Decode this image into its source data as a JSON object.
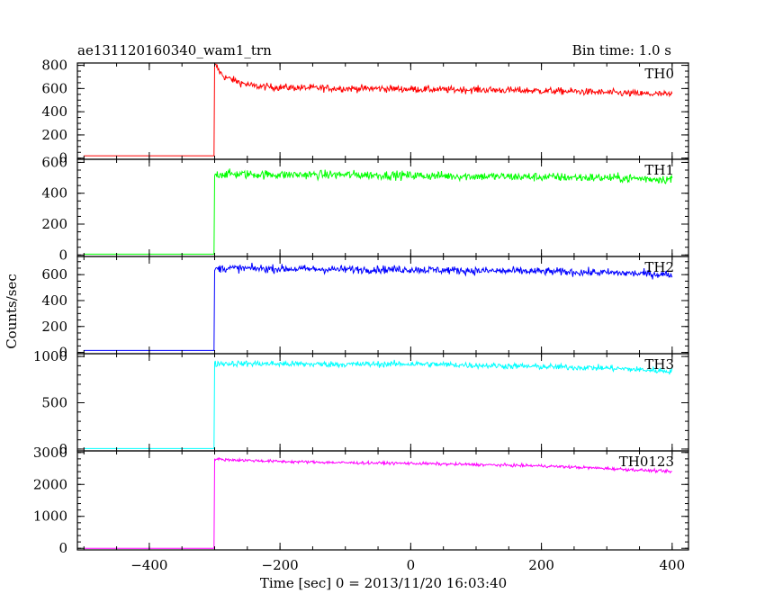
{
  "header": {
    "title": "ae131120160340_wam1_trn",
    "bin_time": "Bin time: 1.0 s"
  },
  "chart_data": {
    "type": "line",
    "xlabel": "Time [sec] 0 = 2013/11/20 16:03:40",
    "ylabel": "Counts/sec",
    "xlim": [
      -510,
      425
    ],
    "x_ticks": [
      -400,
      -200,
      0,
      200,
      400
    ],
    "x_tick_labels": [
      "−400",
      "−200",
      "0",
      "200",
      "400"
    ],
    "trigger_time": -300,
    "x_start": -500,
    "x_end": 400,
    "panels": [
      {
        "name": "TH0",
        "color": "#ff0000",
        "ylim": [
          -10,
          820
        ],
        "y_ticks": [
          0,
          200,
          400,
          600,
          800
        ],
        "y_tick_labels": [
          "0",
          "200",
          "400",
          "600",
          "800"
        ],
        "series": [
          {
            "x": [
              -500,
              -301,
              -300,
              -297,
              -292,
              -285,
              -275,
              -260,
              -240,
              -200,
              -150,
              -100,
              -50,
              0,
              50,
              100,
              150,
              200,
              250,
              300,
              350,
              390,
              400
            ],
            "y": [
              20,
              20,
              800,
              790,
              740,
              700,
              680,
              650,
              620,
              610,
              605,
              600,
              600,
              595,
              590,
              590,
              585,
              580,
              575,
              565,
              555,
              550,
              545
            ],
            "noise": 30
          }
        ]
      },
      {
        "name": "TH1",
        "color": "#00ff00",
        "ylim": [
          -10,
          620
        ],
        "y_ticks": [
          0,
          200,
          400,
          600
        ],
        "y_tick_labels": [
          "0",
          "200",
          "400",
          "600"
        ],
        "series": [
          {
            "x": [
              -500,
              -301,
              -300,
              -290,
              -200,
              -100,
              0,
              100,
              200,
              300,
              400
            ],
            "y": [
              5,
              5,
              520,
              525,
              520,
              520,
              515,
              510,
              505,
              500,
              490
            ],
            "noise": 28
          }
        ]
      },
      {
        "name": "TH2",
        "color": "#0000ff",
        "ylim": [
          -10,
          740
        ],
        "y_ticks": [
          0,
          200,
          400,
          600
        ],
        "y_tick_labels": [
          "0",
          "200",
          "400",
          "600"
        ],
        "series": [
          {
            "x": [
              -500,
              -301,
              -300,
              -290,
              -200,
              -100,
              0,
              100,
              200,
              300,
              400
            ],
            "y": [
              15,
              15,
              640,
              650,
              645,
              640,
              640,
              630,
              625,
              615,
              600
            ],
            "noise": 30
          }
        ]
      },
      {
        "name": "TH3",
        "color": "#00ffff",
        "ylim": [
          -20,
          1030
        ],
        "y_ticks": [
          0,
          500,
          1000
        ],
        "y_tick_labels": [
          "0",
          "500",
          "1000"
        ],
        "series": [
          {
            "x": [
              -500,
              -301,
              -300,
              -290,
              -200,
              -100,
              0,
              100,
              200,
              300,
              400
            ],
            "y": [
              5,
              5,
              920,
              925,
              920,
              915,
              920,
              905,
              890,
              875,
              840
            ],
            "noise": 32
          }
        ]
      },
      {
        "name": "TH0123",
        "color": "#ff00ff",
        "ylim": [
          -50,
          3050
        ],
        "y_ticks": [
          0,
          1000,
          2000,
          3000
        ],
        "y_tick_labels": [
          "0",
          "1000",
          "2000",
          "3000"
        ],
        "series": [
          {
            "x": [
              -500,
              -301,
              -300,
              -290,
              -200,
              -100,
              0,
              100,
              200,
              300,
              400
            ],
            "y": [
              0,
              0,
              2800,
              2780,
              2720,
              2680,
              2660,
              2620,
              2580,
              2500,
              2400
            ],
            "noise": 45
          }
        ]
      }
    ]
  }
}
